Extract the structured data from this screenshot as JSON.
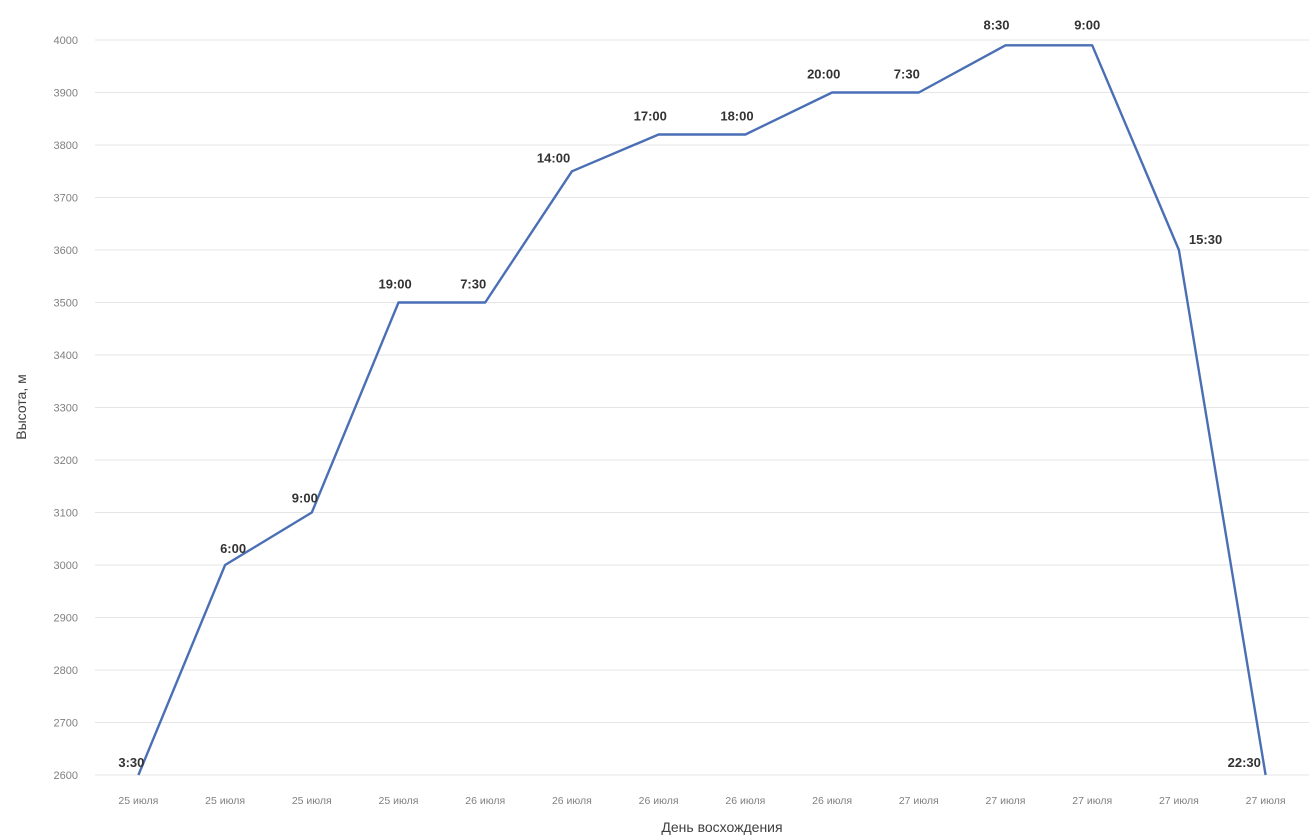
{
  "chart_data": {
    "type": "line",
    "title": "",
    "xlabel": "День восхождения",
    "ylabel": "Высота, м",
    "ylim": [
      2600,
      4000
    ],
    "ytick_step": 100,
    "grid": true,
    "legend": "none",
    "line_color": "#4a6fb5",
    "categories": [
      "25 июля",
      "25 июля",
      "25 июля",
      "25 июля",
      "26 июля",
      "26 июля",
      "26 июля",
      "26 июля",
      "26 июля",
      "27 июля",
      "27 июля",
      "27 июля",
      "27 июля",
      "27 июля"
    ],
    "series": [
      {
        "values": [
          2600,
          3000,
          3100,
          3500,
          3500,
          3750,
          3820,
          3820,
          3900,
          3900,
          3990,
          3990,
          3600,
          2600
        ],
        "labels": [
          "3:30",
          "6:00",
          "9:00",
          "19:00",
          "7:30",
          "14:00",
          "17:00",
          "18:00",
          "20:00",
          "7:30",
          "8:30",
          "9:00",
          "15:30",
          "22:30"
        ]
      }
    ]
  }
}
